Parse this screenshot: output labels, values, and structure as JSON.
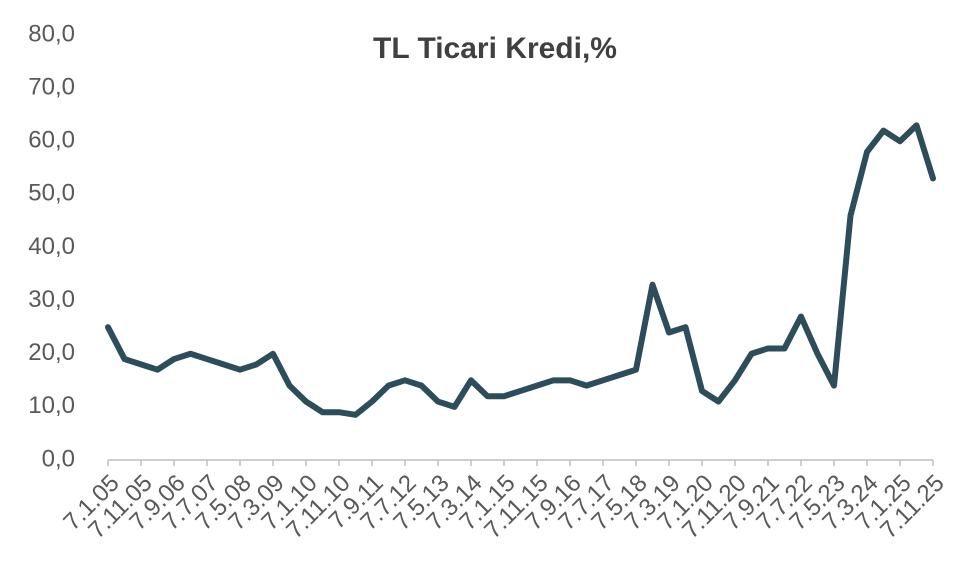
{
  "chart_data": {
    "type": "line",
    "title": "TL Ticari Kredi,%",
    "categories": [
      "7.1.05",
      null,
      "7.11.05",
      null,
      "7.9.06",
      null,
      "7.7.07",
      null,
      "7.5.08",
      null,
      "7.3.09",
      null,
      "7.1.10",
      null,
      "7.11.10",
      null,
      "7.9.11",
      null,
      "7.7.12",
      null,
      "7.5.13",
      null,
      "7.3.14",
      null,
      "7.1.15",
      null,
      "7.11.15",
      null,
      "7.9.16",
      null,
      "7.7.17",
      null,
      "7.5.18",
      null,
      "7.3.19",
      null,
      "7.1.20",
      null,
      "7.11.20",
      null,
      "7.9.21",
      null,
      "7.7.22",
      null,
      "7.5.23",
      null,
      "7.3.24",
      null,
      "7.1.25",
      null,
      "7.11.25"
    ],
    "series": [
      {
        "name": "TL Ticari Kredi",
        "color": "#2d4d5b",
        "values": [
          25,
          19,
          18,
          17,
          19,
          20,
          19,
          18,
          17,
          18,
          20,
          14,
          11,
          9,
          9,
          8.5,
          11,
          14,
          15,
          14,
          11,
          10,
          15,
          12,
          12,
          13,
          14,
          15,
          15,
          14,
          15,
          16,
          17,
          33,
          24,
          25,
          13,
          11,
          15,
          20,
          21,
          21,
          27,
          20,
          14,
          46,
          58,
          62,
          60,
          63,
          53
        ]
      }
    ],
    "ylim": [
      0,
      80
    ],
    "yticks": [
      {
        "value": 0,
        "label": "0,0"
      },
      {
        "value": 10,
        "label": "10,0"
      },
      {
        "value": 20,
        "label": "20,0"
      },
      {
        "value": 30,
        "label": "30,0"
      },
      {
        "value": 40,
        "label": "40,0"
      },
      {
        "value": 50,
        "label": "50,0"
      },
      {
        "value": 60,
        "label": "60,0"
      },
      {
        "value": 70,
        "label": "70,0"
      },
      {
        "value": 80,
        "label": "80,0"
      }
    ],
    "grid": false
  }
}
